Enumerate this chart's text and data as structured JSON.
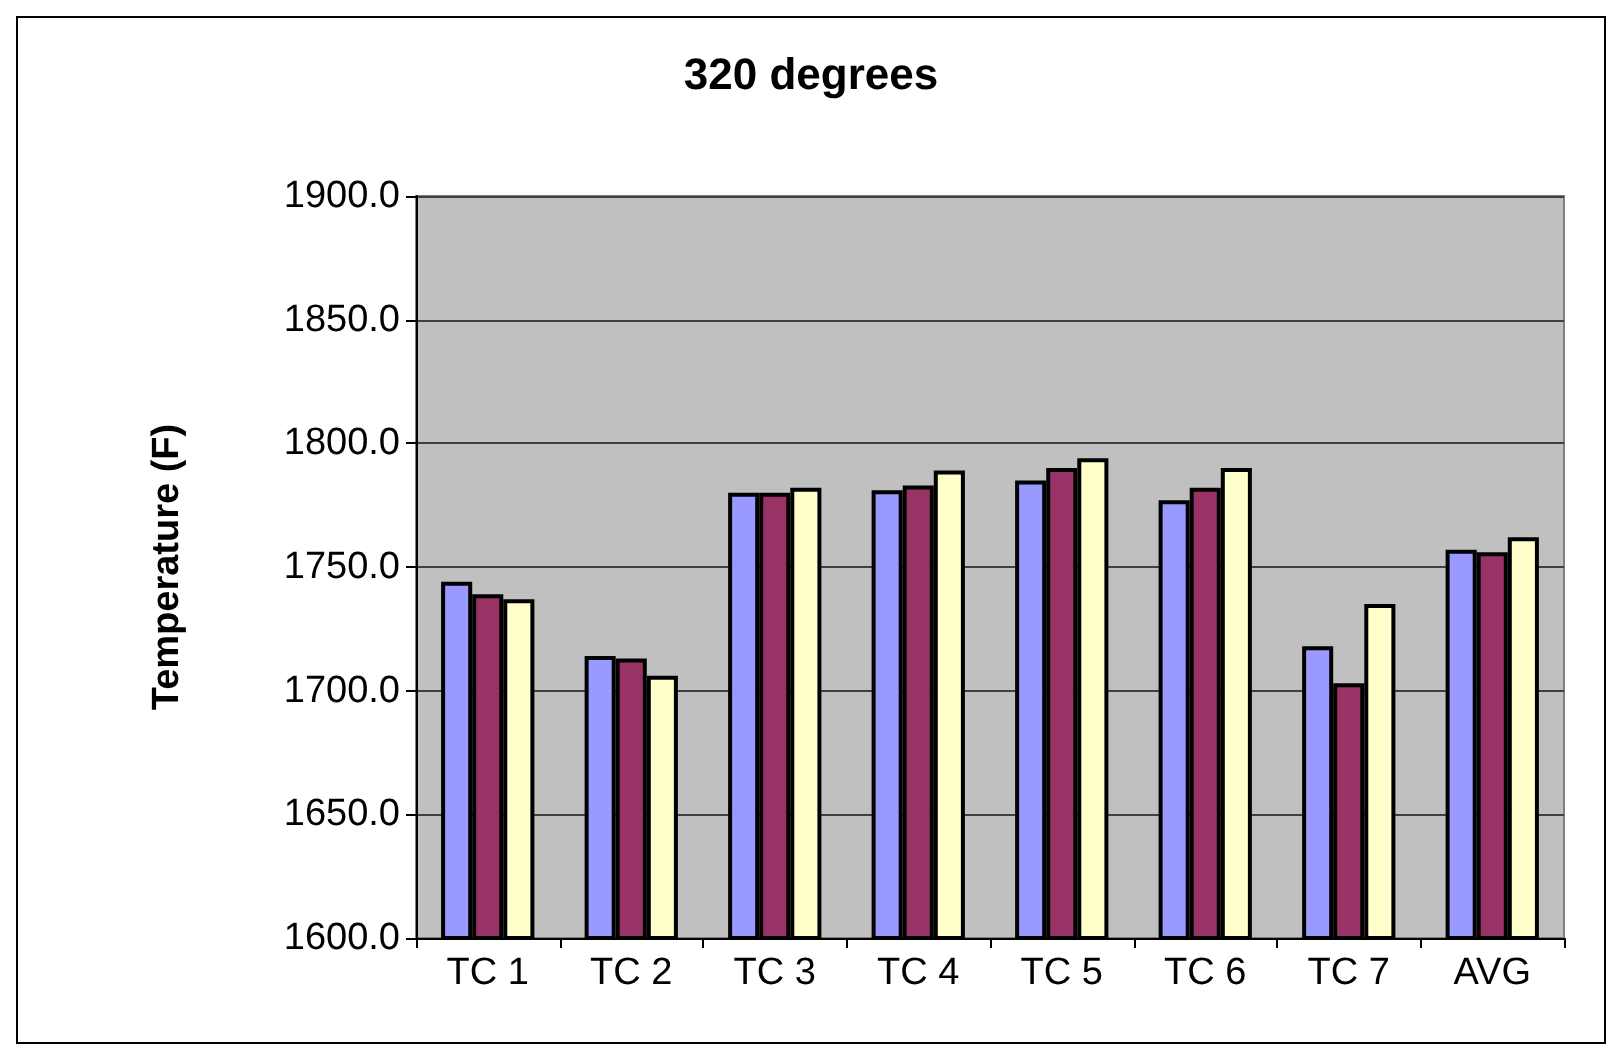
{
  "chart_data": {
    "type": "bar",
    "title": "320 degrees",
    "ylabel": "Temperature (F)",
    "categories": [
      "TC 1",
      "TC 2",
      "TC 3",
      "TC 4",
      "TC 5",
      "TC 6",
      "TC 7",
      "AVG"
    ],
    "series": [
      {
        "color": "#9999ff",
        "values": [
          1744,
          1714,
          1780,
          1781,
          1785,
          1777,
          1718,
          1757
        ]
      },
      {
        "color": "#993366",
        "values": [
          1739,
          1713,
          1780,
          1783,
          1790,
          1782,
          1703,
          1756
        ]
      },
      {
        "color": "#ffffcc",
        "values": [
          1737,
          1706,
          1782,
          1789,
          1794,
          1790,
          1735,
          1762
        ]
      }
    ],
    "ylim": [
      1600,
      1900
    ],
    "yticks": [
      {
        "value": 1600,
        "label": "1600.0"
      },
      {
        "value": 1650,
        "label": "1650.0"
      },
      {
        "value": 1700,
        "label": "1700.0"
      },
      {
        "value": 1750,
        "label": "1750.0"
      },
      {
        "value": 1800,
        "label": "1800.0"
      },
      {
        "value": 1850,
        "label": "1850.0"
      },
      {
        "value": 1900,
        "label": "1900.0"
      }
    ],
    "grid": "y"
  }
}
